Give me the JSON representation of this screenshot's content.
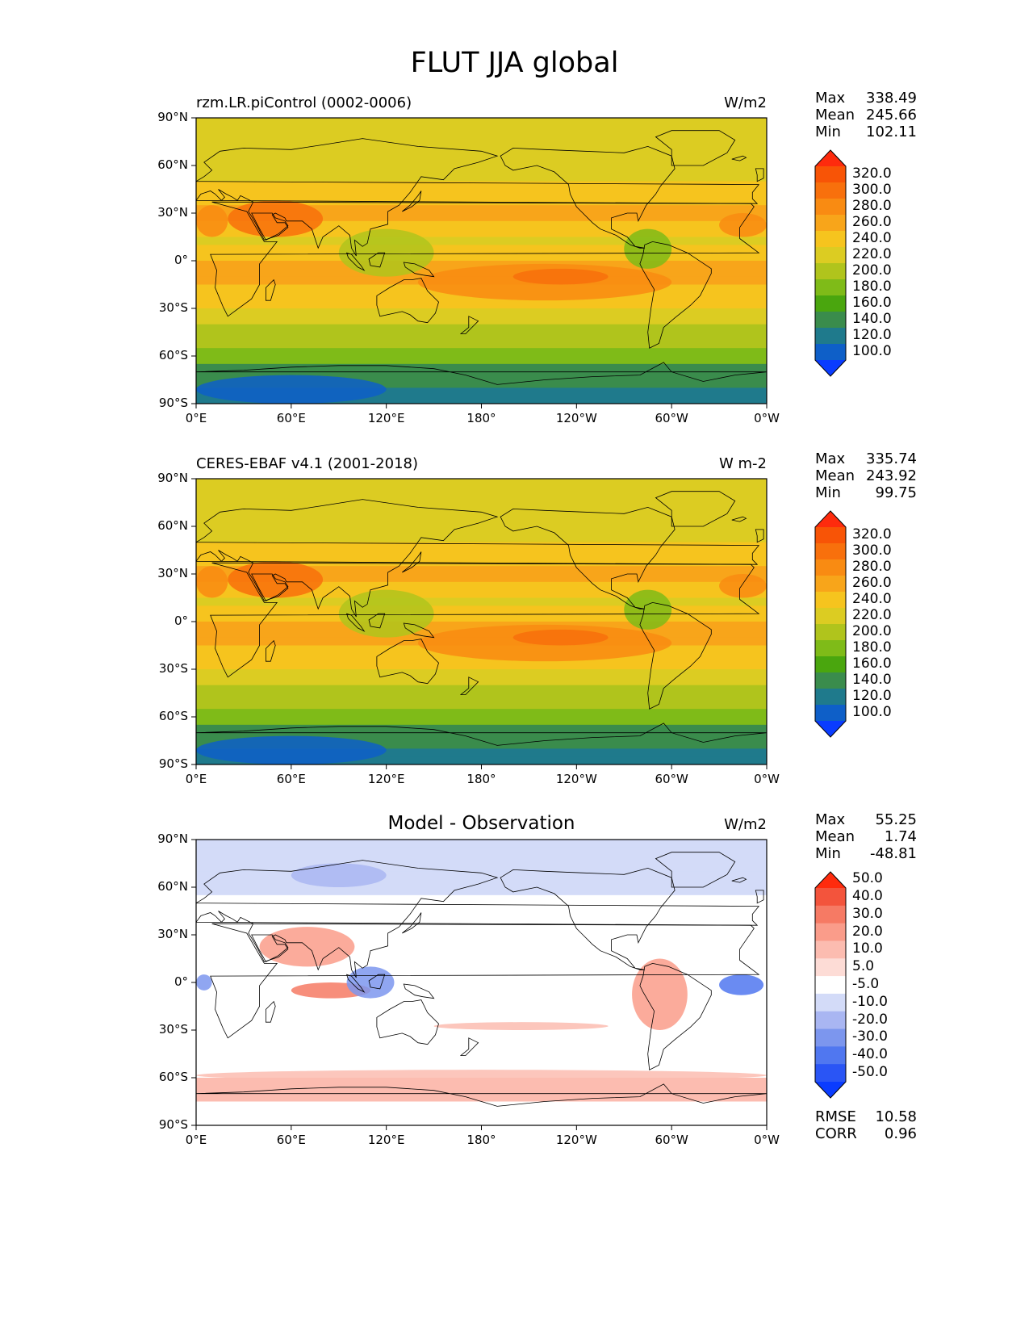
{
  "figure_title": "FLUT JJA global",
  "panels": [
    {
      "label_left": "rzm.LR.piControl (0002-0006)",
      "label_center": "",
      "units": "W/m2",
      "stats": [
        {
          "name": "Max",
          "value": "338.49"
        },
        {
          "name": "Mean",
          "value": "245.66"
        },
        {
          "name": "Min",
          "value": "102.11"
        }
      ],
      "colorbar": {
        "colors": [
          "#0a3cff",
          "#0e5fc8",
          "#1f7a8c",
          "#3a8c4c",
          "#4aa60e",
          "#7fbb18",
          "#b0c41c",
          "#dccc22",
          "#f6c41e",
          "#f8a51a",
          "#f98b12",
          "#f8700c",
          "#f85406",
          "#fe2b0d"
        ],
        "labels": [
          "100.0",
          "120.0",
          "140.0",
          "160.0",
          "180.0",
          "200.0",
          "220.0",
          "240.0",
          "260.0",
          "280.0",
          "300.0",
          "320.0"
        ]
      },
      "extra_stats": []
    },
    {
      "label_left": "CERES-EBAF v4.1 (2001-2018)",
      "label_center": "",
      "units": "W m-2",
      "stats": [
        {
          "name": "Max",
          "value": "335.74"
        },
        {
          "name": "Mean",
          "value": "243.92"
        },
        {
          "name": "Min",
          "value": "99.75"
        }
      ],
      "colorbar": {
        "colors": [
          "#0a3cff",
          "#0e5fc8",
          "#1f7a8c",
          "#3a8c4c",
          "#4aa60e",
          "#7fbb18",
          "#b0c41c",
          "#dccc22",
          "#f6c41e",
          "#f8a51a",
          "#f98b12",
          "#f8700c",
          "#f85406",
          "#fe2b0d"
        ],
        "labels": [
          "100.0",
          "120.0",
          "140.0",
          "160.0",
          "180.0",
          "200.0",
          "220.0",
          "240.0",
          "260.0",
          "280.0",
          "300.0",
          "320.0"
        ]
      },
      "extra_stats": []
    },
    {
      "label_left": "",
      "label_center": "Model - Observation",
      "units": "W/m2",
      "stats": [
        {
          "name": "Max",
          "value": "55.25"
        },
        {
          "name": "Mean",
          "value": "1.74"
        },
        {
          "name": "Min",
          "value": "-48.81"
        }
      ],
      "colorbar": {
        "colors": [
          "#0a3cff",
          "#2a55f5",
          "#5077f0",
          "#7c96ee",
          "#a9b6f2",
          "#d3dbf8",
          "#ffffff",
          "#fddcd6",
          "#fcbcb0",
          "#fa9c8a",
          "#f67a64",
          "#f3543c",
          "#fe2b0d"
        ],
        "labels": [
          "-50.0",
          "-40.0",
          "-30.0",
          "-20.0",
          "-10.0",
          "-5.0",
          "5.0",
          "10.0",
          "20.0",
          "30.0",
          "40.0",
          "50.0"
        ]
      },
      "extra_stats": [
        {
          "name": "RMSE",
          "value": "10.58"
        },
        {
          "name": "CORR",
          "value": "0.96"
        }
      ]
    }
  ],
  "chart_data": {
    "type": "heatmap",
    "title": "FLUT JJA global",
    "subplots": [
      {
        "name": "rzm.LR.piControl (0002-0006)",
        "units": "W/m2",
        "max": 338.49,
        "mean": 245.66,
        "min": 102.11,
        "levels": [
          100,
          120,
          140,
          160,
          180,
          200,
          220,
          240,
          260,
          280,
          300,
          320
        ]
      },
      {
        "name": "CERES-EBAF v4.1 (2001-2018)",
        "units": "W m-2",
        "max": 335.74,
        "mean": 243.92,
        "min": 99.75,
        "levels": [
          100,
          120,
          140,
          160,
          180,
          200,
          220,
          240,
          260,
          280,
          300,
          320
        ]
      },
      {
        "name": "Model - Observation",
        "units": "W/m2",
        "max": 55.25,
        "mean": 1.74,
        "min": -48.81,
        "rmse": 10.58,
        "corr": 0.96,
        "levels": [
          -50,
          -40,
          -30,
          -20,
          -10,
          -5,
          5,
          10,
          20,
          30,
          40,
          50
        ]
      }
    ],
    "x_ticks": [
      "0°E",
      "60°E",
      "120°E",
      "180°",
      "120°W",
      "60°W",
      "0°W"
    ],
    "y_ticks": [
      "90°N",
      "60°N",
      "30°N",
      "0°",
      "30°S",
      "60°S",
      "90°S"
    ],
    "xlim": [
      0,
      360
    ],
    "ylim": [
      -90,
      90
    ]
  }
}
